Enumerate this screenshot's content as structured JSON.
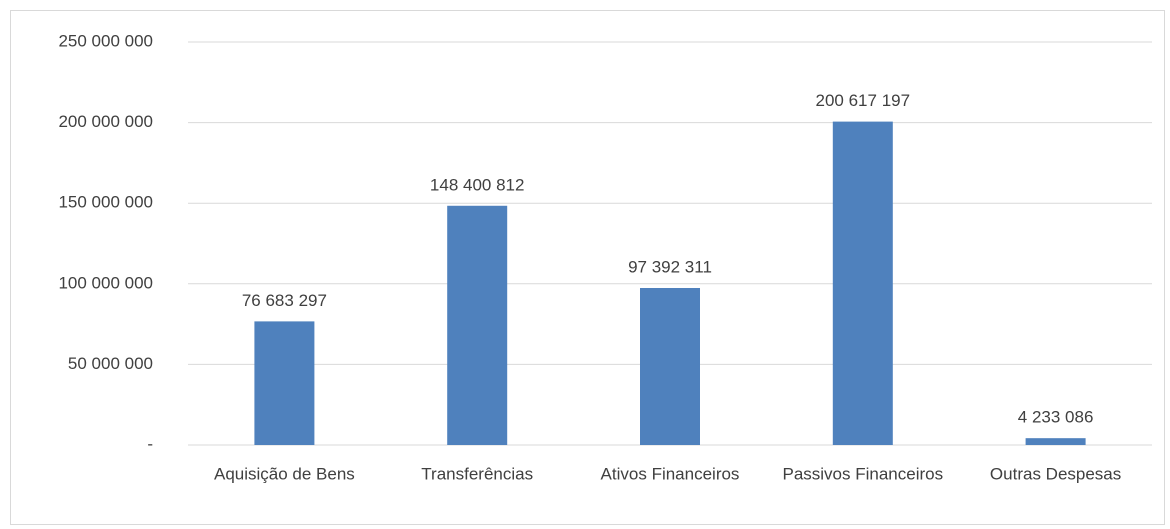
{
  "chart_data": {
    "type": "bar",
    "categories": [
      "Aquisição de Bens",
      "Transferências",
      "Ativos Financeiros",
      "Passivos Financeiros",
      "Outras Despesas"
    ],
    "values": [
      76683297,
      148400812,
      97392311,
      200617197,
      4233086
    ],
    "value_labels": [
      "76 683 297",
      "148 400 812",
      "97 392 311",
      "200 617 197",
      "4 233 086"
    ],
    "color": "#4f81bd",
    "ylim": [
      0,
      250000000
    ],
    "yticks": [
      {
        "value": 0,
        "label": "-"
      },
      {
        "value": 50000000,
        "label": "50 000 000"
      },
      {
        "value": 100000000,
        "label": "100 000 000"
      },
      {
        "value": 150000000,
        "label": "150 000 000"
      },
      {
        "value": 200000000,
        "label": "200 000 000"
      },
      {
        "value": 250000000,
        "label": "250 000 000"
      }
    ],
    "grid": true
  }
}
